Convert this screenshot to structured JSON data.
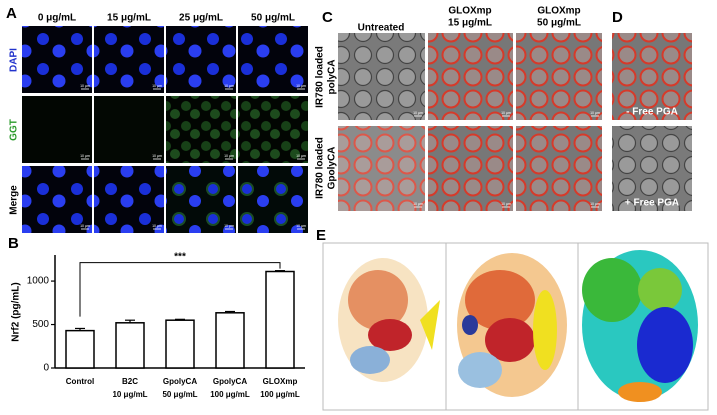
{
  "panel_a": {
    "letter": "A",
    "columns": [
      "0 μg/mL",
      "15 μg/mL",
      "25 μg/mL",
      "50 μg/mL"
    ],
    "rows": [
      "DAPI",
      "GGT",
      "Merge"
    ],
    "scale_label": "10 μm"
  },
  "chart_data": {
    "type": "bar",
    "letter": "B",
    "ylabel": "Nrf2 (pg/mL)",
    "categories": [
      [
        "Control"
      ],
      [
        "B2C",
        "10 μg/mL"
      ],
      [
        "GpolyCA",
        "50 μg/mL"
      ],
      [
        "GpolyCA",
        "100 μg/mL"
      ],
      [
        "GLOXmp",
        "100 μg/mL"
      ]
    ],
    "values": [
      430,
      520,
      550,
      635,
      1110
    ],
    "errors": [
      25,
      30,
      10,
      15,
      10
    ],
    "color": "#ffffff",
    "ylim": [
      0,
      1300
    ],
    "yticks": [
      0,
      500,
      1000
    ],
    "annotation": "***"
  },
  "panel_c": {
    "letter": "C",
    "columns": [
      [
        "Untreated"
      ],
      [
        "GLOXmp",
        "15 μg/mL"
      ],
      [
        "GLOXmp",
        "50 μg/mL"
      ]
    ],
    "rows": [
      [
        "IR780 loaded",
        "polyCA"
      ],
      [
        "IR780 loaded",
        "GpolyCA"
      ]
    ],
    "scale_label": "10 μm"
  },
  "panel_d": {
    "letter": "D",
    "labels": [
      "- Free PGA",
      "+ Free PGA"
    ]
  },
  "panel_e": {
    "letter": "E"
  }
}
